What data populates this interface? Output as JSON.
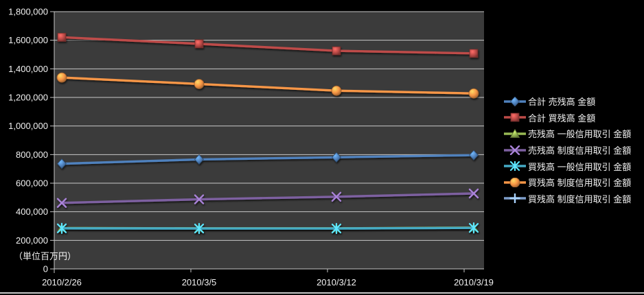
{
  "chart_data": {
    "type": "line",
    "title": "",
    "unit_label": "（単位百万円）",
    "x_categories": [
      "2010/2/26",
      "2010/3/5",
      "2010/3/12",
      "2010/3/19"
    ],
    "yticks": [
      0,
      200000,
      400000,
      600000,
      800000,
      1000000,
      1200000,
      1400000,
      1600000,
      1800000
    ],
    "ylim": [
      0,
      1800000
    ],
    "grid": true,
    "legend_position": "right",
    "plot_bg_color": "#3b3b3b",
    "grid_color": "#c8c8c8",
    "text_color": "#f2f2f2",
    "series": [
      {
        "name": "合計 売残高 金額",
        "color": "#4f81bd",
        "marker": "diamond",
        "values": [
          736000,
          766000,
          781000,
          796000
        ]
      },
      {
        "name": "合計 買残高 金額",
        "color": "#be4b48",
        "marker": "square",
        "values": [
          1621000,
          1575000,
          1526000,
          1508000
        ]
      },
      {
        "name": "売残高 一般信用取引 金額",
        "color": "#98b954",
        "marker": "triangle",
        "values": [
          286000,
          284000,
          284000,
          289000
        ]
      },
      {
        "name": "売残高 制度信用取引 金額",
        "color": "#7d60a0",
        "marker": "x",
        "values": [
          462000,
          487000,
          505000,
          528000
        ]
      },
      {
        "name": "買残高 一般信用取引 金額",
        "color": "#45aac5",
        "marker": "asterisk",
        "values": [
          284000,
          283000,
          283000,
          287000
        ]
      },
      {
        "name": "買残高 制度信用取引 金額",
        "color": "#f79646",
        "marker": "circle",
        "values": [
          1339000,
          1294000,
          1247000,
          1228000
        ]
      },
      {
        "name": "買残高 制度信用取引 金額",
        "color": "#7e9dc9",
        "marker": "plus",
        "values": []
      }
    ]
  }
}
